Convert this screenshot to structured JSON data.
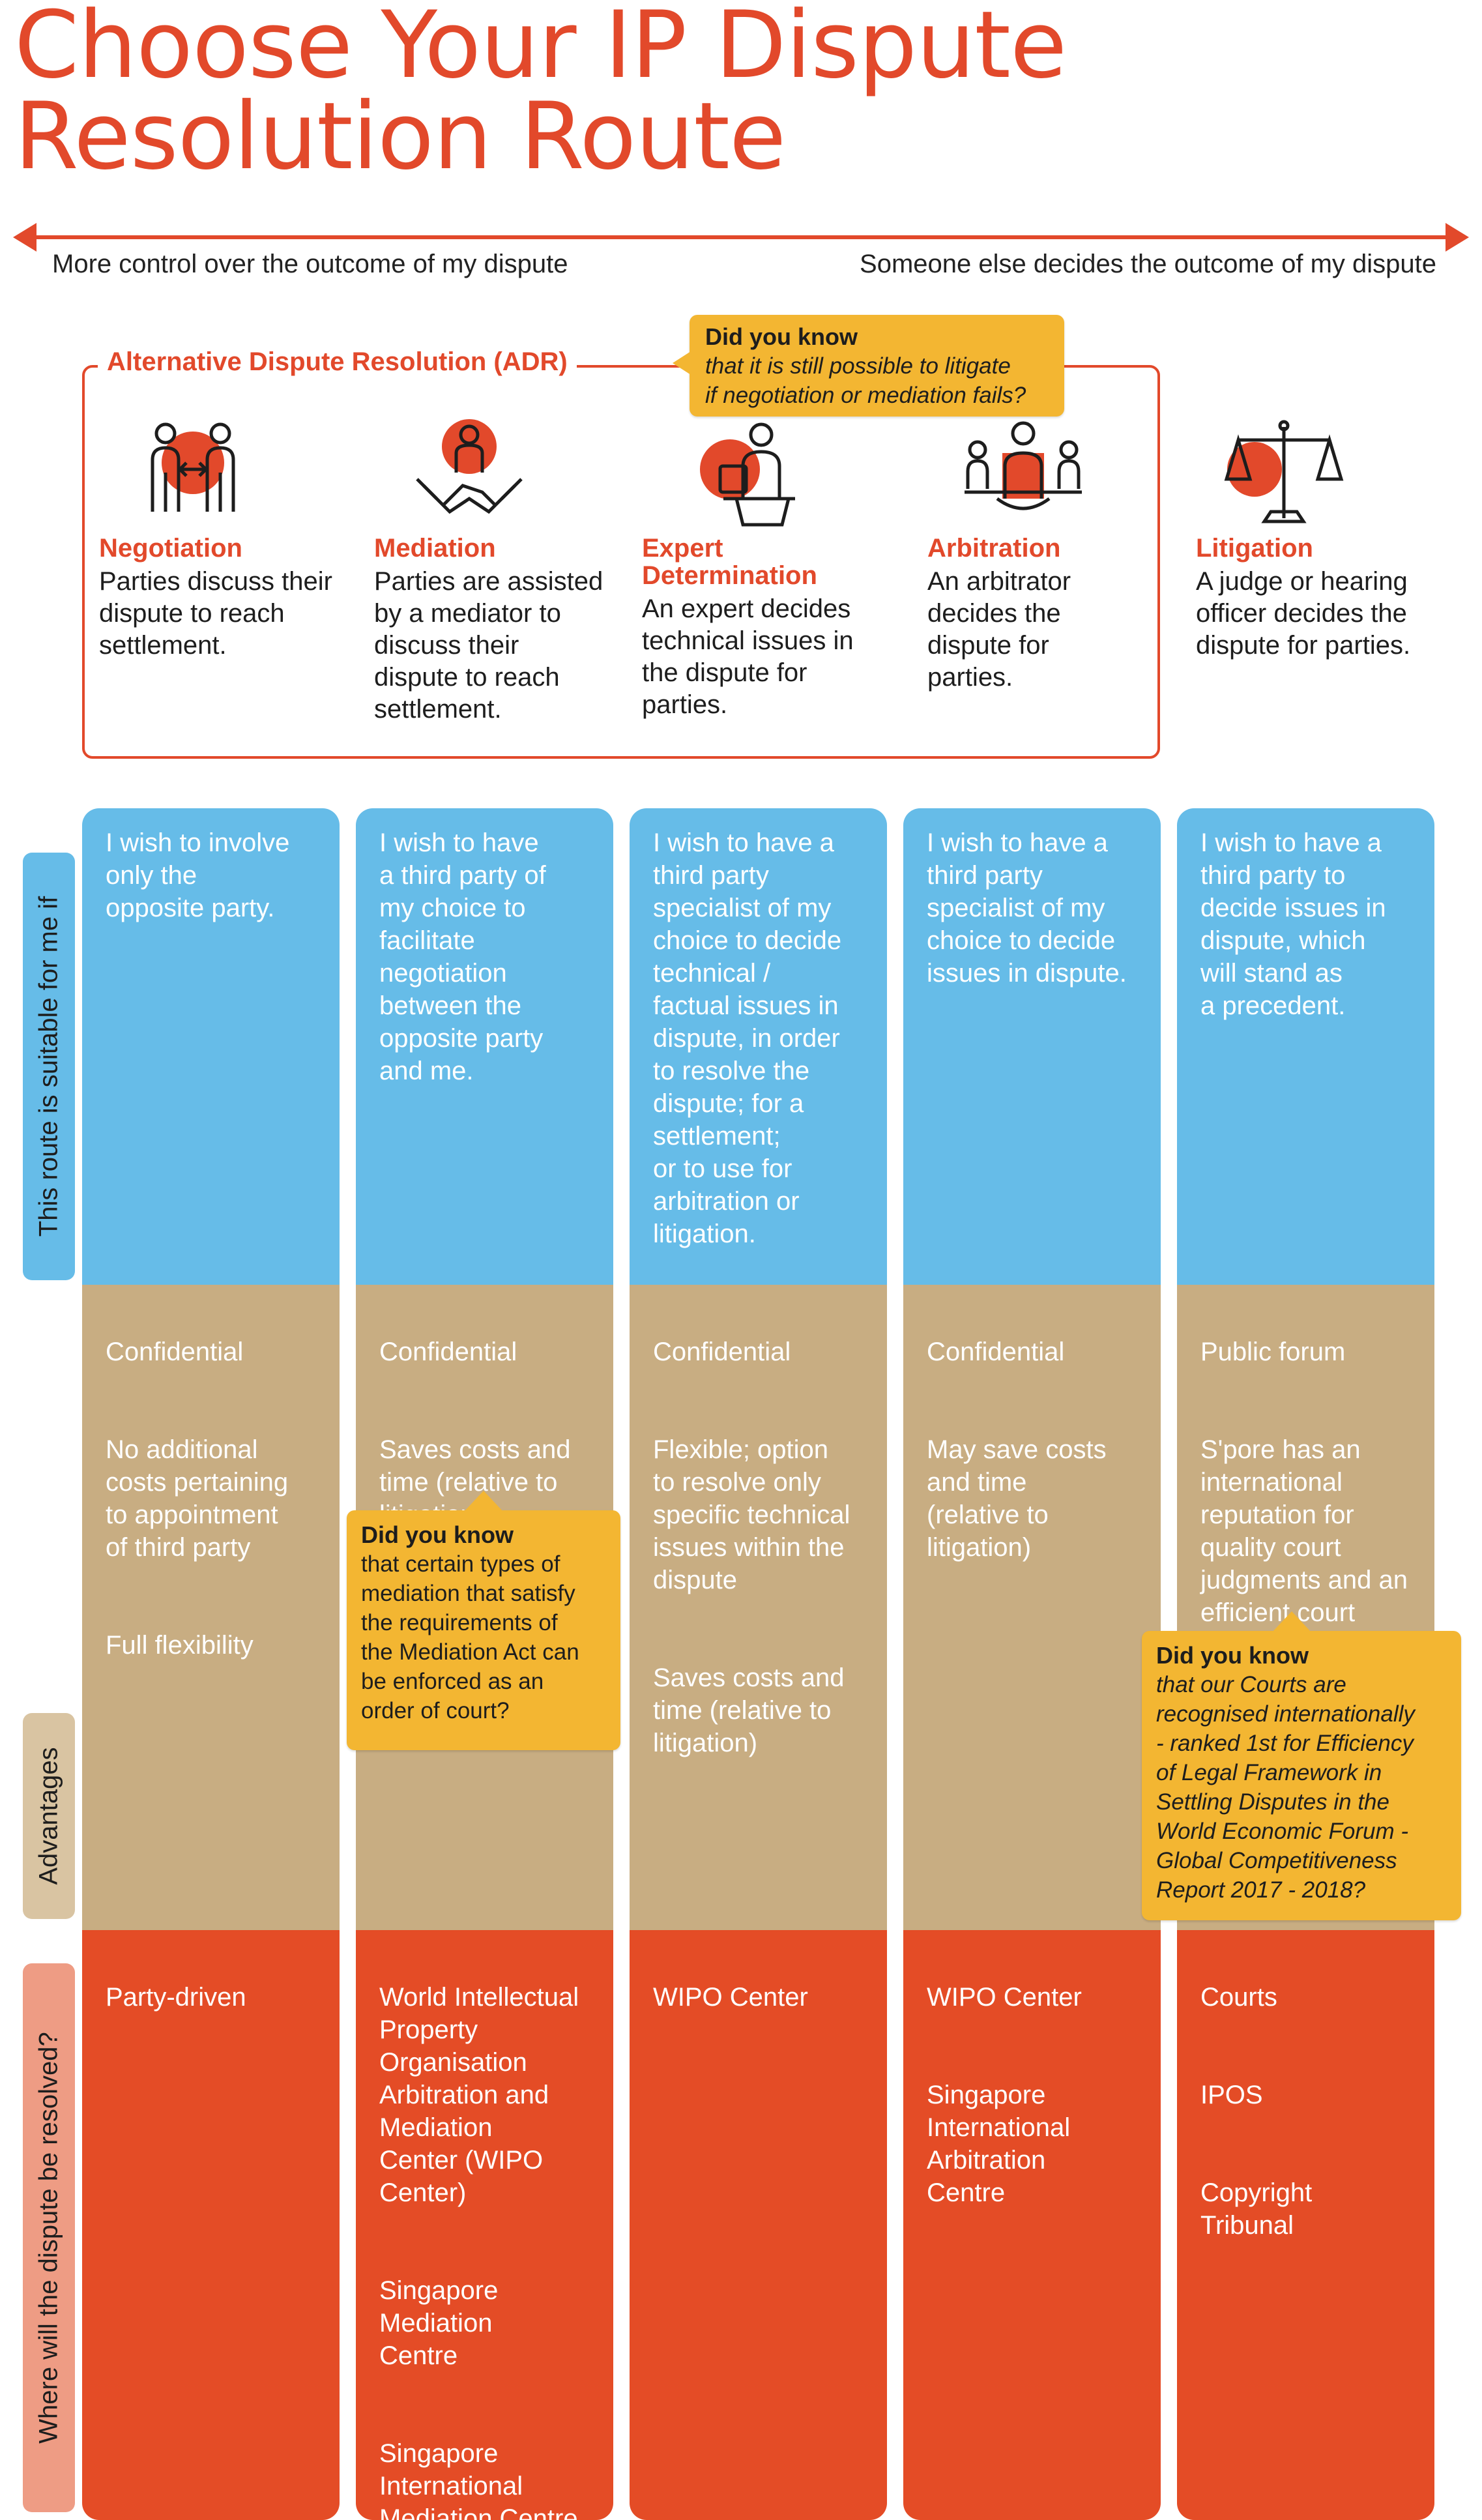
{
  "title": {
    "line1": "Choose Your IP Dispute",
    "line2": "Resolution Route"
  },
  "axis": {
    "left": "More control over the outcome of my dispute",
    "right": "Someone else decides the outcome of my dispute"
  },
  "adr": {
    "title": "Alternative Dispute Resolution (ADR)"
  },
  "did_you_know_top": {
    "heading": "Did you know",
    "line1": "that it is still possible to litigate",
    "line2": "if negotiation or mediation fails?"
  },
  "routes": [
    {
      "name": "Negotiation",
      "desc": "Parties discuss their dispute to reach settlement."
    },
    {
      "name": "Mediation",
      "desc": "Parties are assisted by a mediator to discuss their dispute to reach settlement."
    },
    {
      "name": "Expert Determination",
      "desc": "An expert decides technical issues in the dispute for parties."
    },
    {
      "name": "Arbitration",
      "desc": "An arbitrator decides the dispute for parties."
    },
    {
      "name": "Litigation",
      "desc": "A judge or hearing officer decides the dispute for parties."
    }
  ],
  "side_labels": {
    "suitable": "This route is suitable for me if",
    "advantages": "Advantages",
    "where": "Where will the dispute be resolved?"
  },
  "columns": [
    {
      "suitable": "I wish to involve\nonly the\nopposite party.",
      "advantages": [
        "Confidential",
        "No additional\ncosts pertaining\nto appointment\nof third party",
        "Full flexibility"
      ],
      "where": [
        "Party-driven"
      ]
    },
    {
      "suitable": "I wish to have\na third party of\nmy choice to\nfacilitate\nnegotiation\nbetween the\nopposite party\nand me.",
      "advantages": [
        "Confidential",
        "Saves costs and\ntime (relative to\nlitigation)"
      ],
      "where": [
        "World Intellectual\nProperty\nOrganisation\nArbitration and\nMediation\nCenter (WIPO\nCenter)",
        "Singapore\nMediation\nCentre",
        "Singapore\nInternational\nMediation Centre"
      ]
    },
    {
      "suitable": "I wish to have a\nthird party\nspecialist of my\nchoice to decide\ntechnical /\nfactual issues in\ndispute, in order\nto resolve the\ndispute; for a\nsettlement;\nor to use for\narbitration or\nlitigation.",
      "advantages": [
        "Confidential",
        "Flexible; option\nto resolve only\nspecific technical\nissues within the\ndispute",
        "Saves costs and\ntime (relative to\nlitigation)"
      ],
      "where": [
        "WIPO Center"
      ]
    },
    {
      "suitable": "I wish to have a\nthird party\nspecialist of my\nchoice to decide\nissues in dispute.",
      "advantages": [
        "Confidential",
        "May save costs\nand time\n(relative to\nlitigation)"
      ],
      "where": [
        "WIPO Center",
        "Singapore\nInternational\nArbitration\nCentre"
      ]
    },
    {
      "suitable": "I wish to have a\nthird party to\ndecide issues in\ndispute, which\nwill stand as\na precedent.",
      "advantages": [
        "Public forum",
        "S'pore has an\ninternational\nreputation for\nquality court\njudgments and an\nefficient court\nsystem"
      ],
      "where": [
        "Courts",
        "IPOS",
        "Copyright\nTribunal"
      ]
    }
  ],
  "did_you_know_mediation": {
    "heading": "Did you know",
    "body": "that certain types of\nmediation that satisfy\nthe requirements of\nthe Mediation Act can\nbe enforced as an\norder of court?"
  },
  "did_you_know_courts": {
    "heading": "Did you know",
    "body": "that our Courts are\nrecognised internationally\n- ranked 1st for Efficiency\nof Legal Framework in\nSettling Disputes in the\nWorld Economic Forum -\nGlobal Competitiveness\nReport 2017 - 2018?"
  },
  "colors": {
    "accent": "#e2492b",
    "blue": "#66bce8",
    "tan": "#c8ad82",
    "red": "#e44c26",
    "callout": "#f3b632"
  }
}
